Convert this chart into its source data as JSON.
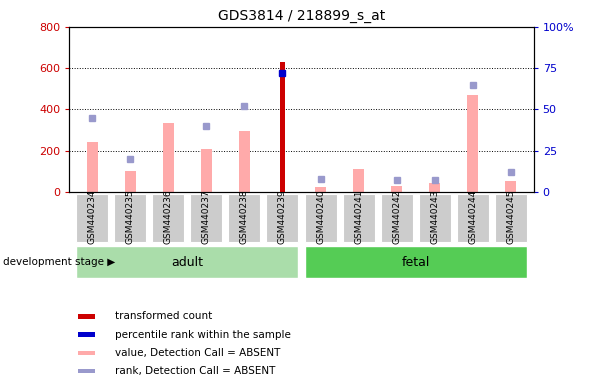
{
  "title": "GDS3814 / 218899_s_at",
  "samples": [
    "GSM440234",
    "GSM440235",
    "GSM440236",
    "GSM440237",
    "GSM440238",
    "GSM440239",
    "GSM440240",
    "GSM440241",
    "GSM440242",
    "GSM440243",
    "GSM440244",
    "GSM440245"
  ],
  "groups": [
    "adult",
    "adult",
    "adult",
    "adult",
    "adult",
    "adult",
    "fetal",
    "fetal",
    "fetal",
    "fetal",
    "fetal",
    "fetal"
  ],
  "values_absent": [
    240,
    100,
    335,
    210,
    295,
    null,
    25,
    110,
    30,
    45,
    470,
    55
  ],
  "ranks_absent": [
    45,
    20,
    null,
    40,
    52,
    null,
    8,
    null,
    7,
    7,
    65,
    12
  ],
  "values_present": [
    null,
    null,
    null,
    null,
    null,
    630,
    null,
    null,
    null,
    null,
    null,
    null
  ],
  "ranks_present": [
    null,
    null,
    null,
    null,
    null,
    72,
    null,
    null,
    null,
    null,
    null,
    null
  ],
  "ylim_left": [
    0,
    800
  ],
  "ylim_right": [
    0,
    100
  ],
  "left_ticks": [
    0,
    200,
    400,
    600,
    800
  ],
  "right_ticks": [
    0,
    25,
    50,
    75,
    100
  ],
  "left_color": "#cc0000",
  "right_color": "#0000cc",
  "absent_value_color": "#ffaaaa",
  "absent_rank_color": "#9999cc",
  "present_value_color": "#cc0000",
  "present_rank_color": "#0000cc",
  "adult_bg": "#aaddaa",
  "fetal_bg": "#55cc55",
  "legend_items": [
    {
      "label": "transformed count",
      "color": "#cc0000"
    },
    {
      "label": "percentile rank within the sample",
      "color": "#0000cc"
    },
    {
      "label": "value, Detection Call = ABSENT",
      "color": "#ffaaaa"
    },
    {
      "label": "rank, Detection Call = ABSENT",
      "color": "#9999cc"
    }
  ]
}
